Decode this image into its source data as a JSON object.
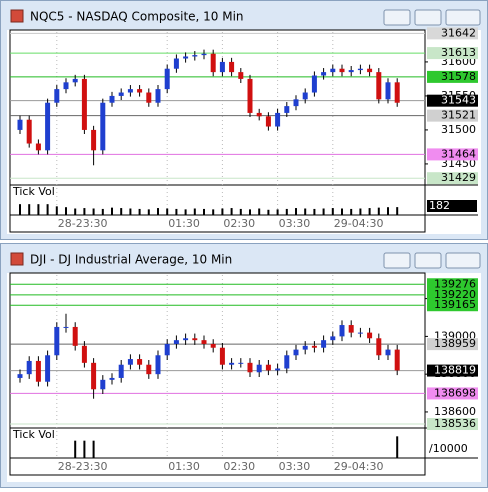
{
  "chart_data": [
    {
      "type": "candlestick",
      "title": "NQC5 - NASDAQ Composite, 10 Min",
      "categories": [
        null,
        null,
        null,
        null,
        "28-23:30",
        null,
        null,
        null,
        null,
        null,
        null,
        null,
        null,
        null,
        null,
        null,
        "01:30",
        null,
        null,
        null,
        null,
        null,
        "02:30",
        null,
        null,
        null,
        null,
        null,
        "03:30",
        null,
        null,
        null,
        null,
        null,
        "29-04:30",
        null,
        null,
        null,
        null,
        null,
        null,
        null
      ],
      "open": [
        31500,
        31515,
        31480,
        31470,
        31540,
        31560,
        31570,
        31575,
        31500,
        31470,
        31540,
        31550,
        31555,
        31560,
        31555,
        31540,
        31560,
        31590,
        31605,
        31608,
        31610,
        31612,
        31585,
        31600,
        31585,
        31575,
        31525,
        31520,
        31505,
        31525,
        31535,
        31545,
        31555,
        31580,
        31585,
        31590,
        31585,
        31588,
        31590,
        31585,
        31545,
        31570
      ],
      "high": [
        31521,
        31521,
        31486,
        31546,
        31566,
        31576,
        31581,
        31581,
        31506,
        31546,
        31556,
        31561,
        31566,
        31566,
        31561,
        31566,
        31596,
        31611,
        31614,
        31616,
        31618,
        31618,
        31606,
        31606,
        31591,
        31581,
        31531,
        31526,
        31531,
        31541,
        31551,
        31561,
        31586,
        31591,
        31596,
        31596,
        31594,
        31596,
        31596,
        31591,
        31576,
        31576
      ],
      "low": [
        31494,
        31474,
        31464,
        31464,
        31534,
        31554,
        31564,
        31494,
        31448,
        31464,
        31534,
        31544,
        31549,
        31549,
        31534,
        31534,
        31554,
        31584,
        31599,
        31602,
        31604,
        31579,
        31579,
        31579,
        31569,
        31519,
        31514,
        31499,
        31499,
        31519,
        31529,
        31539,
        31549,
        31574,
        31579,
        31579,
        31579,
        31582,
        31579,
        31539,
        31539,
        31534
      ],
      "close": [
        31515,
        31480,
        31470,
        31540,
        31560,
        31570,
        31575,
        31500,
        31470,
        31540,
        31550,
        31555,
        31560,
        31555,
        31540,
        31560,
        31590,
        31605,
        31608,
        31610,
        31612,
        31585,
        31600,
        31585,
        31575,
        31525,
        31520,
        31505,
        31525,
        31535,
        31545,
        31555,
        31580,
        31585,
        31590,
        31585,
        31588,
        31590,
        31585,
        31545,
        31570,
        31540
      ],
      "up_color": "#1f3fcf",
      "down_color": "#d01010",
      "ylim": [
        31419,
        31644
      ],
      "yticks": [
        31450,
        31500,
        31550,
        31600
      ],
      "levels": [
        {
          "value": 31642,
          "color": "#d8d8d8",
          "line_color": "#c8c8c8"
        },
        {
          "value": 31613,
          "color": "#c8e6c8",
          "line_color": "#66dd66"
        },
        {
          "value": 31578,
          "color": "#2ec82e",
          "line_color": "#22bb22"
        },
        {
          "value": 31543,
          "color": "#000000",
          "line_color": "#9a9a9a"
        },
        {
          "value": 31521,
          "color": "#d0d0d0",
          "line_color": "#666666"
        },
        {
          "value": 31464,
          "color": "#f08cf0",
          "line_color": "#e070e0"
        },
        {
          "value": 31429,
          "color": "#c8e6c8",
          "line_color": "#c8e6c8"
        }
      ],
      "volume_label": "Tick Vol",
      "volume": [
        250,
        250,
        250,
        250,
        200,
        180,
        150,
        160,
        150,
        140,
        170,
        160,
        150,
        140,
        130,
        160,
        150,
        140,
        130,
        150,
        140,
        130,
        150,
        160,
        140,
        130,
        150,
        120,
        130,
        140,
        160,
        150,
        140,
        150,
        160,
        150,
        140,
        150,
        160,
        170,
        180,
        182
      ],
      "volume_ylim": [
        0,
        600
      ],
      "volume_value_label": "182",
      "volume_value_bg": "#000000"
    },
    {
      "type": "candlestick",
      "title": "DJI - DJ Industrial Average, 10 Min",
      "categories": [
        null,
        null,
        null,
        null,
        "28-23:30",
        null,
        null,
        null,
        null,
        null,
        null,
        null,
        null,
        null,
        null,
        null,
        "01:30",
        null,
        null,
        null,
        null,
        null,
        "02:30",
        null,
        null,
        null,
        null,
        null,
        "03:30",
        null,
        null,
        null,
        null,
        null,
        "29-04:30",
        null,
        null,
        null,
        null,
        null,
        null,
        null
      ],
      "open": [
        138780,
        138800,
        138870,
        138760,
        138900,
        139050,
        139050,
        138950,
        138860,
        138720,
        138770,
        138780,
        138850,
        138880,
        138850,
        138800,
        138900,
        138960,
        138980,
        138990,
        138980,
        138960,
        138940,
        138850,
        138860,
        138860,
        138810,
        138850,
        138820,
        138830,
        138900,
        138930,
        138950,
        138940,
        138980,
        139000,
        139060,
        139020,
        139020,
        138990,
        138900,
        138930
      ],
      "high": [
        138825,
        138895,
        138895,
        138925,
        139075,
        139120,
        139075,
        138975,
        138885,
        138795,
        138805,
        138875,
        138905,
        138905,
        138875,
        138925,
        138985,
        139005,
        139015,
        139015,
        139005,
        138985,
        138965,
        138885,
        138885,
        138885,
        138875,
        138875,
        138855,
        138925,
        138955,
        138975,
        138975,
        139005,
        139025,
        139085,
        139085,
        139045,
        139045,
        139015,
        138955,
        138955
      ],
      "low": [
        138755,
        138775,
        138735,
        138735,
        138875,
        139020,
        138925,
        138835,
        138670,
        138695,
        138745,
        138755,
        138825,
        138825,
        138775,
        138775,
        138875,
        138935,
        138955,
        138955,
        138935,
        138915,
        138825,
        138825,
        138835,
        138785,
        138785,
        138795,
        138795,
        138805,
        138875,
        138905,
        138915,
        138915,
        138955,
        138975,
        138995,
        138995,
        138965,
        138875,
        138875,
        138795
      ],
      "close": [
        138800,
        138870,
        138760,
        138900,
        139050,
        139050,
        138950,
        138860,
        138720,
        138770,
        138780,
        138850,
        138880,
        138850,
        138800,
        138900,
        138960,
        138980,
        138990,
        138980,
        138960,
        138940,
        138850,
        138860,
        138860,
        138810,
        138850,
        138820,
        138830,
        138900,
        138930,
        138950,
        138940,
        138980,
        139000,
        139060,
        139020,
        139020,
        138990,
        138900,
        138930,
        138820
      ],
      "up_color": "#1f3fcf",
      "down_color": "#d01010",
      "ylim": [
        138515,
        139325
      ],
      "yticks": [
        138600,
        138800,
        139000,
        139200
      ],
      "levels": [
        {
          "value": 139276,
          "color": "#2ec82e",
          "line_color": "#22bb22"
        },
        {
          "value": 139220,
          "color": "#2ec82e",
          "line_color": "#22bb22"
        },
        {
          "value": 139165,
          "color": "#2ec82e",
          "line_color": "#22bb22"
        },
        {
          "value": 138959,
          "color": "#d0d0d0",
          "line_color": "#666666"
        },
        {
          "value": 138819,
          "color": "#000000",
          "line_color": "#9a9a9a"
        },
        {
          "value": 138698,
          "color": "#f08cf0",
          "line_color": "#e070e0"
        },
        {
          "value": 138536,
          "color": "#c8e6c8",
          "line_color": "#c8e6c8"
        }
      ],
      "volume_label": "Tick Vol",
      "volume": [
        500,
        500,
        500,
        500,
        500,
        500,
        20000,
        20000,
        20000,
        500,
        500,
        500,
        500,
        500,
        500,
        500,
        500,
        500,
        500,
        500,
        500,
        500,
        500,
        500,
        500,
        500,
        500,
        500,
        500,
        500,
        500,
        500,
        500,
        500,
        500,
        500,
        500,
        500,
        500,
        500,
        500,
        25000
      ],
      "volume_ylim": [
        0,
        30000
      ],
      "volume_value_label": "/10000",
      "volume_value_bg": "#ffffff"
    }
  ]
}
